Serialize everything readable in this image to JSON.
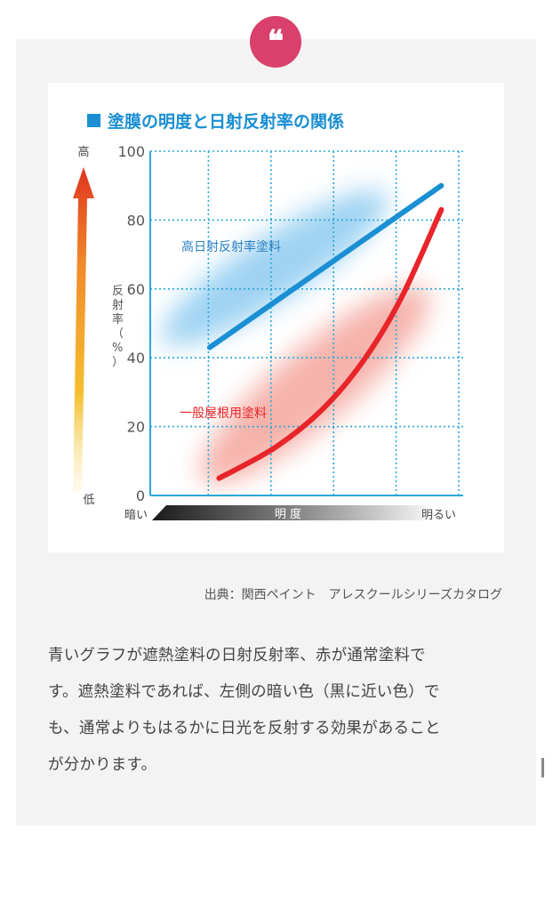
{
  "quote_icon": "quote-mark-icon",
  "figure": {
    "title": "塗膜の明度と日射反射率の関係",
    "legend_square_color": "#1a8fd3"
  },
  "chart_data": {
    "type": "line",
    "title": "塗膜の明度と日射反射率の関係",
    "xlabel": "明 度",
    "ylabel": "反射率（%）",
    "x_axis": {
      "left_label": "暗い",
      "right_label": "明るい",
      "min": 0,
      "max": 1
    },
    "ylim": [
      0,
      100
    ],
    "y_ticks": [
      0,
      20,
      40,
      60,
      80,
      100
    ],
    "grid": true,
    "scale_bar": {
      "top_label": "高",
      "bottom_label": "低"
    },
    "series": [
      {
        "name": "高日射反射率塗料",
        "color": "#1a8fd3",
        "x": [
          0.19,
          0.93
        ],
        "y": [
          43,
          90
        ]
      },
      {
        "name": "一般屋根用塗料",
        "color": "#e8252a",
        "x": [
          0.22,
          0.4,
          0.55,
          0.68,
          0.8,
          0.93
        ],
        "y": [
          5,
          14,
          25,
          39,
          57,
          83
        ]
      }
    ]
  },
  "caption": "出典：関西ペイント　アレスクールシリーズカタログ",
  "body_lines": [
    "青いグラフが遮熱塗料の日射反射率、赤が通常塗料で",
    "す。遮熱塗料であれば、左側の暗い色（黒に近い色）で",
    "も、通常よりもはるかに日光を反射する効果があること",
    "が分かります。"
  ]
}
